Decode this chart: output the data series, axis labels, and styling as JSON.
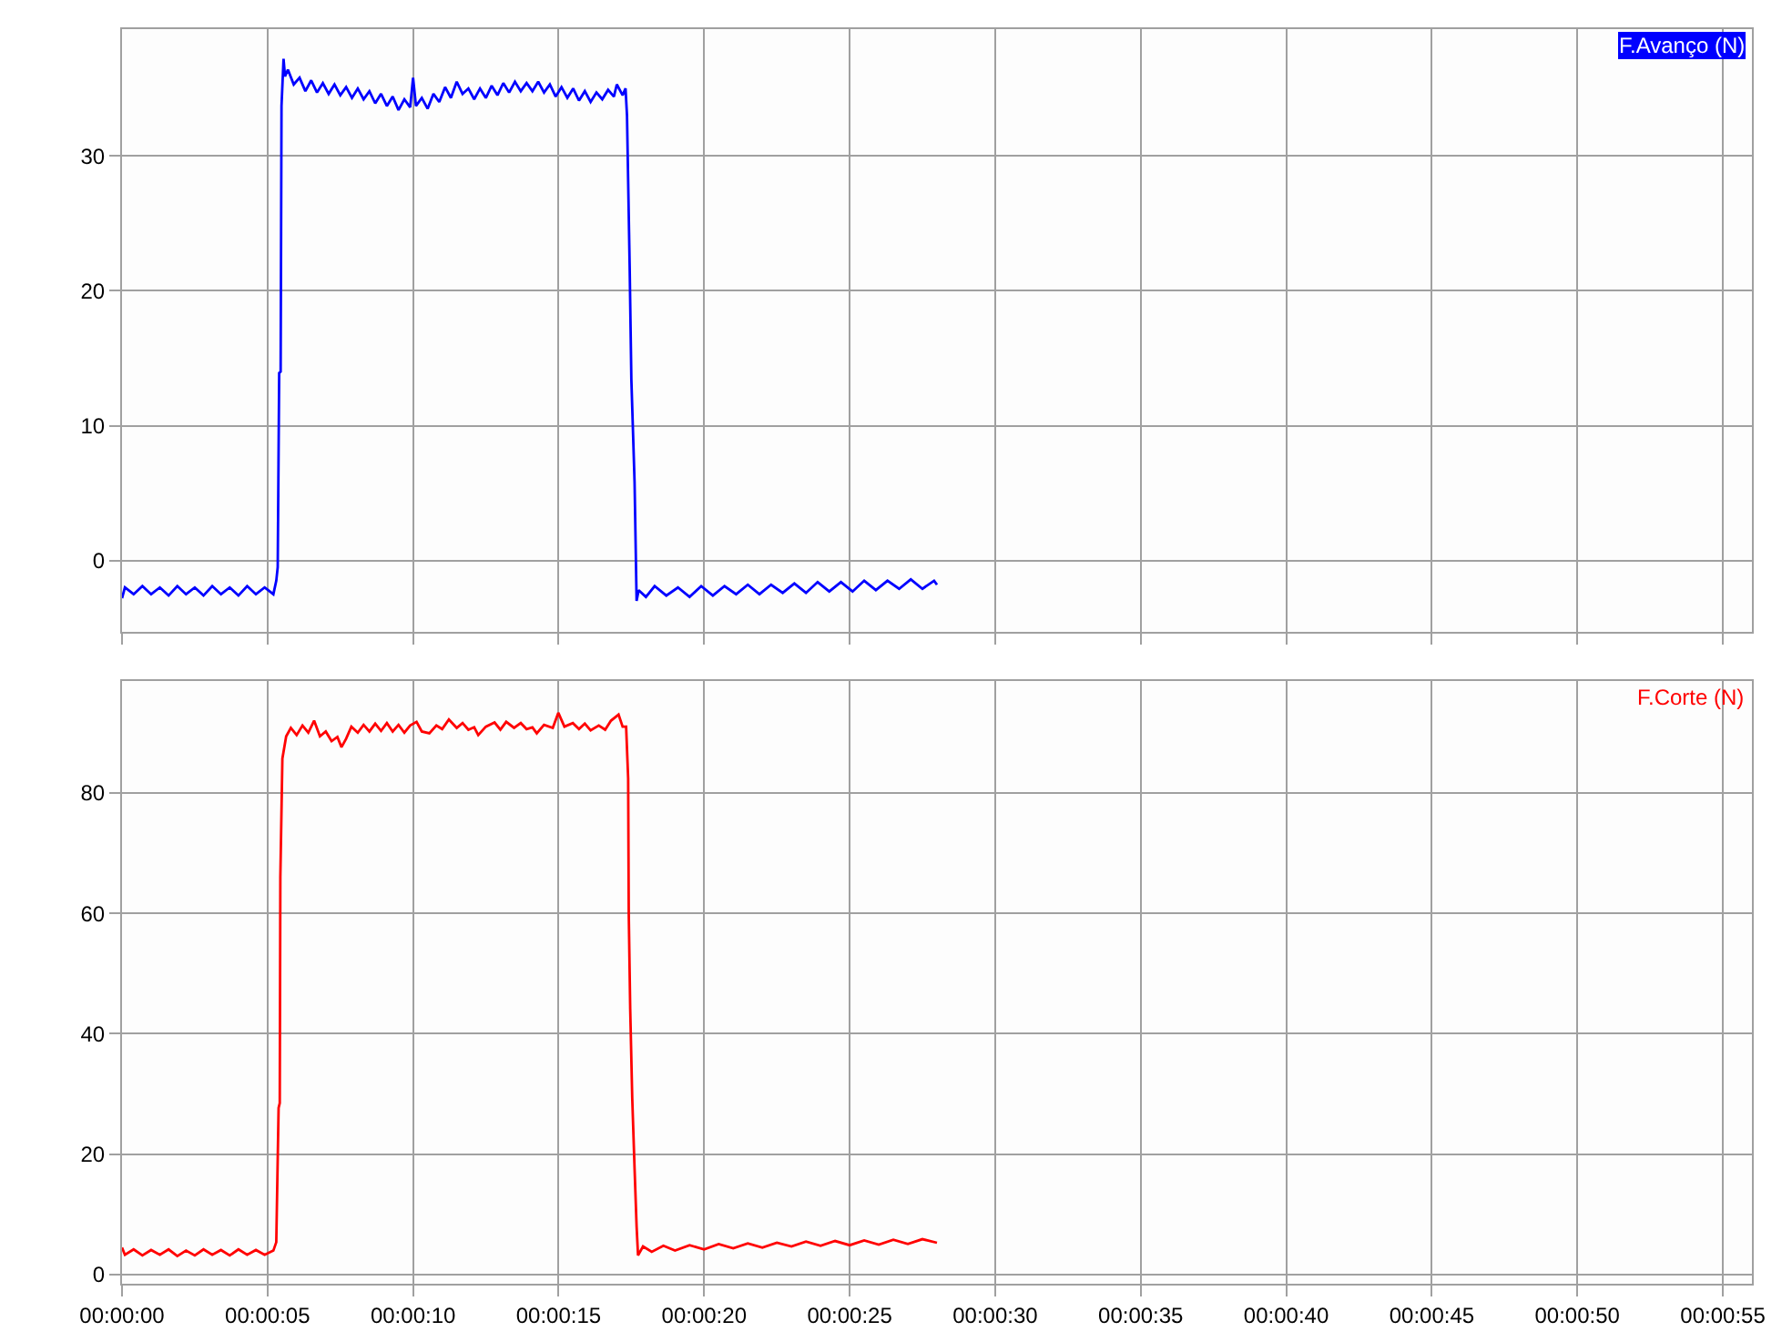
{
  "chart_data": [
    {
      "type": "line",
      "x": [
        0.0,
        0.1,
        0.4,
        0.7,
        1.0,
        1.3,
        1.6,
        1.9,
        2.2,
        2.5,
        2.8,
        3.1,
        3.4,
        3.7,
        4.0,
        4.3,
        4.6,
        4.9,
        5.2,
        5.3,
        5.35,
        5.4,
        5.45,
        5.48,
        5.55,
        5.6,
        5.7,
        5.9,
        6.1,
        6.3,
        6.5,
        6.7,
        6.9,
        7.1,
        7.3,
        7.5,
        7.7,
        7.9,
        8.1,
        8.3,
        8.5,
        8.7,
        8.9,
        9.1,
        9.3,
        9.5,
        9.7,
        9.9,
        10.0,
        10.1,
        10.3,
        10.5,
        10.7,
        10.9,
        11.1,
        11.3,
        11.5,
        11.7,
        11.9,
        12.1,
        12.3,
        12.5,
        12.7,
        12.9,
        13.1,
        13.3,
        13.5,
        13.7,
        13.9,
        14.1,
        14.3,
        14.5,
        14.7,
        14.9,
        15.1,
        15.3,
        15.5,
        15.7,
        15.9,
        16.1,
        16.3,
        16.5,
        16.7,
        16.9,
        17.0,
        17.2,
        17.3,
        17.35,
        17.44,
        17.5,
        17.61,
        17.68,
        17.75,
        18.0,
        18.3,
        18.7,
        19.1,
        19.5,
        19.9,
        20.3,
        20.7,
        21.1,
        21.5,
        21.9,
        22.3,
        22.7,
        23.1,
        23.5,
        23.9,
        24.3,
        24.7,
        25.1,
        25.5,
        25.9,
        26.3,
        26.7,
        27.1,
        27.5,
        27.9,
        28.0
      ],
      "series": [
        {
          "name": "F.Avanço (N)",
          "color": "#0000ff",
          "values": [
            -2.8,
            -2.0,
            -2.5,
            -1.9,
            -2.5,
            -2.0,
            -2.6,
            -1.9,
            -2.5,
            -2.0,
            -2.6,
            -1.9,
            -2.5,
            -2.0,
            -2.6,
            -1.9,
            -2.5,
            -2.0,
            -2.5,
            -1.5,
            -0.5,
            13.9,
            14.0,
            33.7,
            37.2,
            35.9,
            36.4,
            35.3,
            35.8,
            34.8,
            35.6,
            34.7,
            35.4,
            34.6,
            35.3,
            34.5,
            35.1,
            34.3,
            35.0,
            34.2,
            34.8,
            33.9,
            34.6,
            33.7,
            34.4,
            33.4,
            34.2,
            33.6,
            35.8,
            33.7,
            34.3,
            33.5,
            34.6,
            34.0,
            35.1,
            34.3,
            35.5,
            34.6,
            35.0,
            34.2,
            35.0,
            34.3,
            35.2,
            34.5,
            35.4,
            34.7,
            35.5,
            34.8,
            35.4,
            34.8,
            35.5,
            34.7,
            35.3,
            34.4,
            35.1,
            34.3,
            35.0,
            34.1,
            34.8,
            34.0,
            34.7,
            34.2,
            34.9,
            34.4,
            35.3,
            34.5,
            35.0,
            33.0,
            22.0,
            13.4,
            5.8,
            -3.0,
            -2.2,
            -2.7,
            -1.9,
            -2.6,
            -2.0,
            -2.7,
            -1.9,
            -2.6,
            -1.9,
            -2.5,
            -1.8,
            -2.5,
            -1.8,
            -2.4,
            -1.7,
            -2.4,
            -1.6,
            -2.3,
            -1.6,
            -2.3,
            -1.5,
            -2.2,
            -1.5,
            -2.1,
            -1.4,
            -2.1,
            -1.5,
            -1.8
          ]
        }
      ],
      "xlim": [
        0,
        56
      ],
      "ylim": [
        -5.3,
        39.4
      ],
      "xticks": [
        0,
        5,
        10,
        15,
        20,
        25,
        30,
        35,
        40,
        45,
        50,
        55
      ],
      "yticks": [
        0,
        10,
        20,
        30
      ],
      "grid": true,
      "legend": "top right",
      "tick_labels": "y"
    },
    {
      "type": "line",
      "x": [
        0.0,
        0.1,
        0.4,
        0.7,
        1.0,
        1.3,
        1.6,
        1.9,
        2.2,
        2.5,
        2.8,
        3.1,
        3.4,
        3.7,
        4.0,
        4.3,
        4.6,
        4.9,
        5.2,
        5.3,
        5.38,
        5.42,
        5.44,
        5.51,
        5.64,
        5.8,
        6.0,
        6.2,
        6.4,
        6.6,
        6.8,
        7.0,
        7.2,
        7.4,
        7.54,
        7.7,
        7.88,
        8.1,
        8.3,
        8.5,
        8.7,
        8.9,
        9.1,
        9.3,
        9.5,
        9.7,
        9.9,
        10.12,
        10.3,
        10.56,
        10.8,
        11.0,
        11.23,
        11.5,
        11.7,
        11.9,
        12.1,
        12.24,
        12.5,
        12.8,
        13.0,
        13.2,
        13.47,
        13.7,
        13.9,
        14.1,
        14.25,
        14.5,
        14.8,
        14.99,
        15.2,
        15.49,
        15.7,
        15.9,
        16.1,
        16.38,
        16.6,
        16.8,
        17.06,
        17.2,
        17.32,
        17.39,
        17.41,
        17.46,
        17.53,
        17.61,
        17.68,
        17.73,
        17.9,
        18.2,
        18.6,
        19.0,
        19.5,
        20.0,
        20.5,
        21.0,
        21.5,
        22.0,
        22.5,
        23.0,
        23.5,
        24.0,
        24.5,
        25.0,
        25.5,
        26.0,
        26.5,
        27.0,
        27.5,
        28.0
      ],
      "series": [
        {
          "name": "F.Corte (N)",
          "color": "#ff0000",
          "values": [
            4.5,
            3.3,
            4.2,
            3.2,
            4.1,
            3.3,
            4.2,
            3.1,
            4.0,
            3.2,
            4.2,
            3.3,
            4.1,
            3.2,
            4.2,
            3.3,
            4.1,
            3.3,
            4.0,
            5.4,
            27.7,
            28.5,
            66.0,
            85.7,
            89.4,
            90.8,
            89.6,
            91.2,
            90.0,
            92.0,
            89.4,
            90.2,
            88.6,
            89.3,
            87.6,
            89.0,
            91.0,
            90.0,
            91.3,
            90.2,
            91.5,
            90.3,
            91.6,
            90.2,
            91.3,
            90.0,
            91.2,
            91.8,
            90.2,
            89.9,
            91.2,
            90.6,
            92.2,
            90.8,
            91.6,
            90.5,
            90.9,
            89.6,
            91.0,
            91.7,
            90.5,
            91.8,
            90.8,
            91.6,
            90.6,
            90.9,
            89.9,
            91.3,
            90.8,
            93.3,
            91.0,
            91.6,
            90.6,
            91.5,
            90.4,
            91.2,
            90.5,
            92.0,
            93.0,
            91.0,
            91.0,
            82.4,
            60.1,
            44.2,
            29.3,
            17.6,
            8.0,
            3.2,
            4.7,
            3.8,
            4.8,
            4.0,
            4.9,
            4.2,
            5.1,
            4.4,
            5.2,
            4.5,
            5.3,
            4.7,
            5.5,
            4.8,
            5.6,
            4.9,
            5.7,
            5.0,
            5.8,
            5.1,
            5.9,
            5.3
          ]
        }
      ],
      "xlim": [
        0,
        56
      ],
      "ylim": [
        -1.5,
        98.6
      ],
      "xticks": [
        {
          "value": 0,
          "label": "00:00:00"
        },
        {
          "value": 5,
          "label": "00:00:05"
        },
        {
          "value": 10,
          "label": "00:00:10"
        },
        {
          "value": 15,
          "label": "00:00:15"
        },
        {
          "value": 20,
          "label": "00:00:20"
        },
        {
          "value": 25,
          "label": "00:00:25"
        },
        {
          "value": 30,
          "label": "00:00:30"
        },
        {
          "value": 35,
          "label": "00:00:35"
        },
        {
          "value": 40,
          "label": "00:00:40"
        },
        {
          "value": 45,
          "label": "00:00:45"
        },
        {
          "value": 50,
          "label": "00:00:50"
        },
        {
          "value": 55,
          "label": "00:00:55"
        }
      ],
      "yticks": [
        0,
        20,
        40,
        60,
        80
      ],
      "grid": true,
      "legend": "top right"
    }
  ]
}
